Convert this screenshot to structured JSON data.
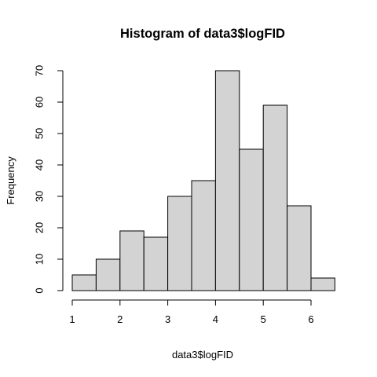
{
  "chart_data": {
    "type": "bar",
    "title": "Histogram of data3$logFID",
    "xlabel": "data3$logFID",
    "ylabel": "Frequency",
    "bins": [
      {
        "from": 1.0,
        "to": 1.5,
        "count": 5
      },
      {
        "from": 1.5,
        "to": 2.0,
        "count": 10
      },
      {
        "from": 2.0,
        "to": 2.5,
        "count": 19
      },
      {
        "from": 2.5,
        "to": 3.0,
        "count": 17
      },
      {
        "from": 3.0,
        "to": 3.5,
        "count": 30
      },
      {
        "from": 3.5,
        "to": 4.0,
        "count": 35
      },
      {
        "from": 4.0,
        "to": 4.5,
        "count": 70
      },
      {
        "from": 4.5,
        "to": 5.0,
        "count": 45
      },
      {
        "from": 5.0,
        "to": 5.5,
        "count": 59
      },
      {
        "from": 5.5,
        "to": 6.0,
        "count": 27
      },
      {
        "from": 6.0,
        "to": 6.5,
        "count": 4
      }
    ],
    "xlim": [
      1,
      6.5
    ],
    "ylim": [
      0,
      70
    ],
    "x_ticks": [
      1,
      2,
      3,
      4,
      5,
      6
    ],
    "y_ticks": [
      0,
      10,
      20,
      30,
      40,
      50,
      60,
      70
    ],
    "grid": false,
    "bar_fill": "#d3d3d3",
    "bar_stroke": "#000000"
  }
}
